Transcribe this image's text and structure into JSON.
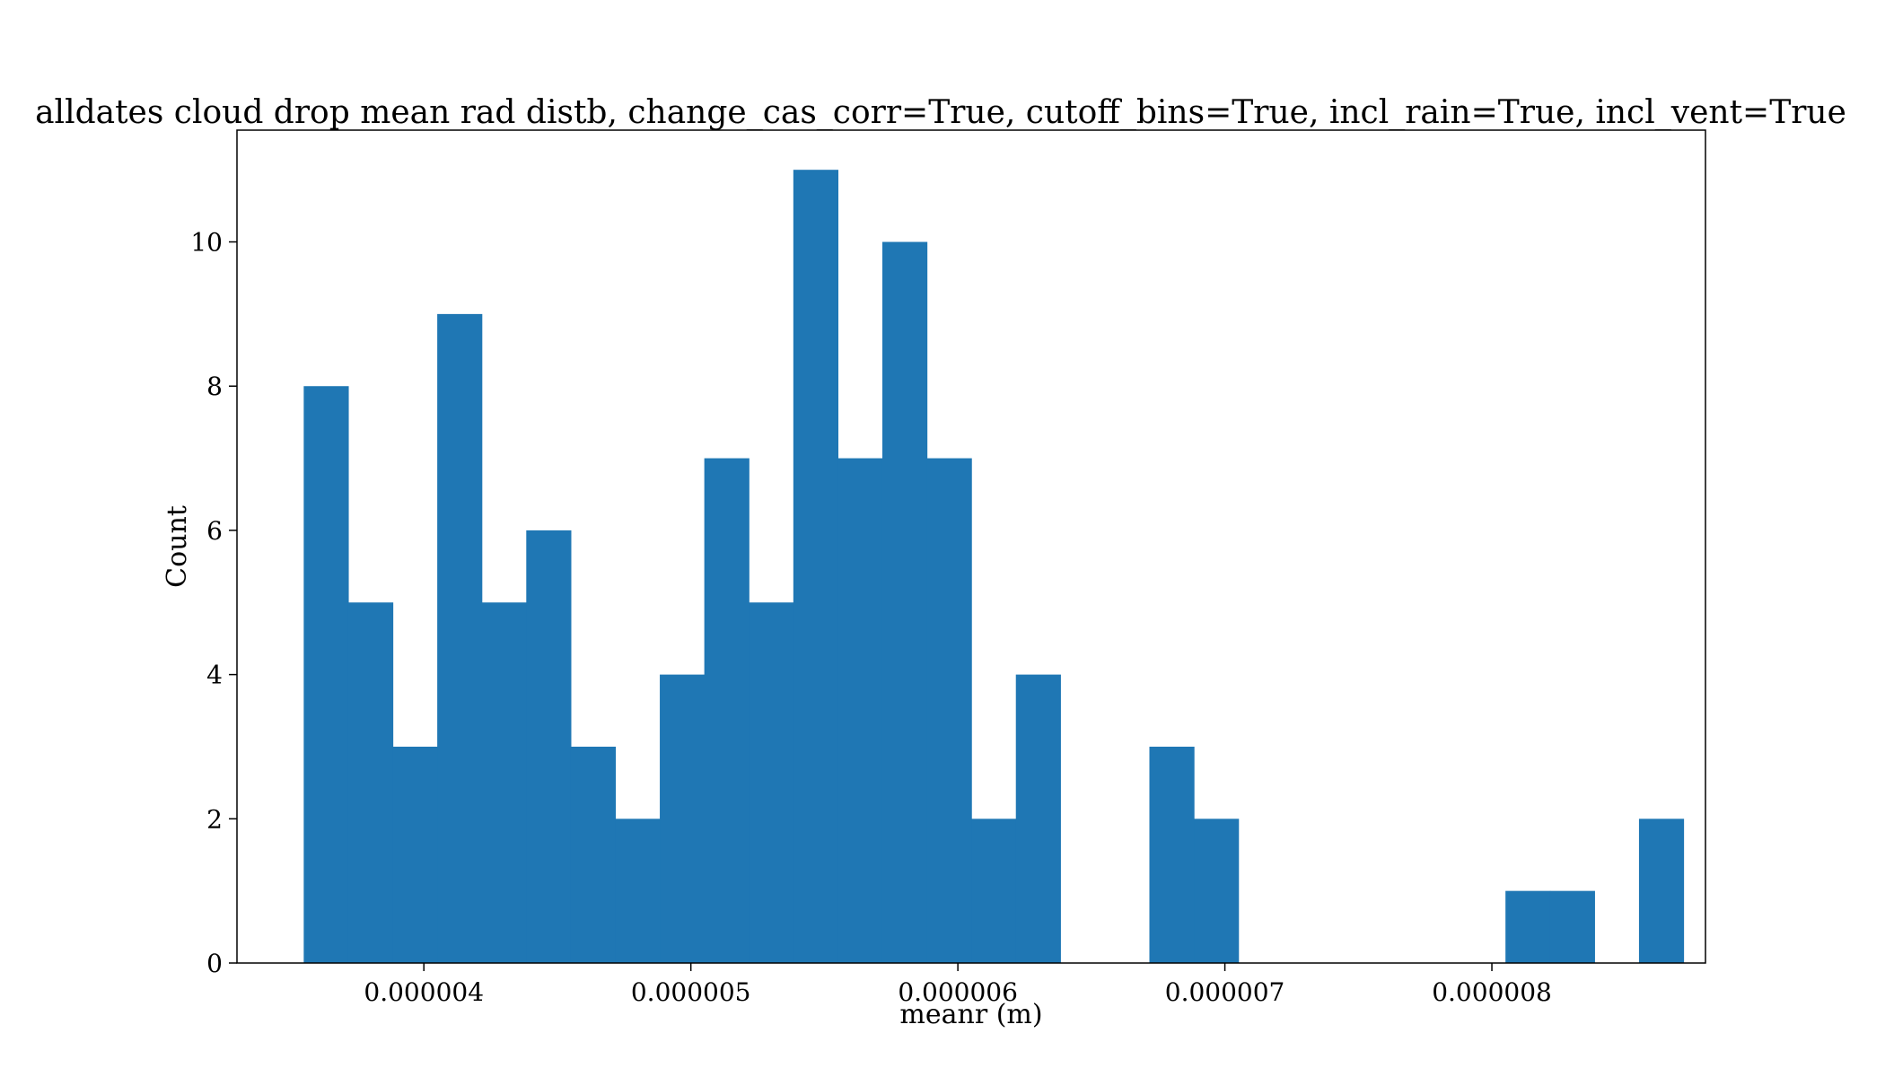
{
  "chart_data": {
    "type": "bar",
    "title": "alldates cloud drop mean rad distb, change_cas_corr=True, cutoff_bins=True, incl_rain=True, incl_vent=True",
    "xlabel": "meanr (m)",
    "ylabel": "Count",
    "xlim": [
      3.3e-06,
      8.8e-06
    ],
    "ylim": [
      0,
      11.55
    ],
    "x_ticks": [
      4e-06,
      5e-06,
      6e-06,
      7e-06,
      8e-06
    ],
    "x_tick_labels": [
      "0.000004",
      "0.000005",
      "0.000006",
      "0.000007",
      "0.000008"
    ],
    "y_ticks": [
      0,
      2,
      4,
      6,
      8,
      10
    ],
    "y_tick_labels": [
      "0",
      "2",
      "4",
      "6",
      "8",
      "10"
    ],
    "bin_start": 3.55e-06,
    "bin_width": 1.667e-07,
    "values": [
      8,
      5,
      3,
      9,
      5,
      6,
      3,
      2,
      4,
      7,
      5,
      11,
      7,
      10,
      7,
      2,
      4,
      0,
      0,
      3,
      2,
      0,
      0,
      0,
      0,
      0,
      0,
      1,
      1,
      0,
      2
    ],
    "bar_color": "#1f77b4",
    "grid": false,
    "legend": "none"
  }
}
